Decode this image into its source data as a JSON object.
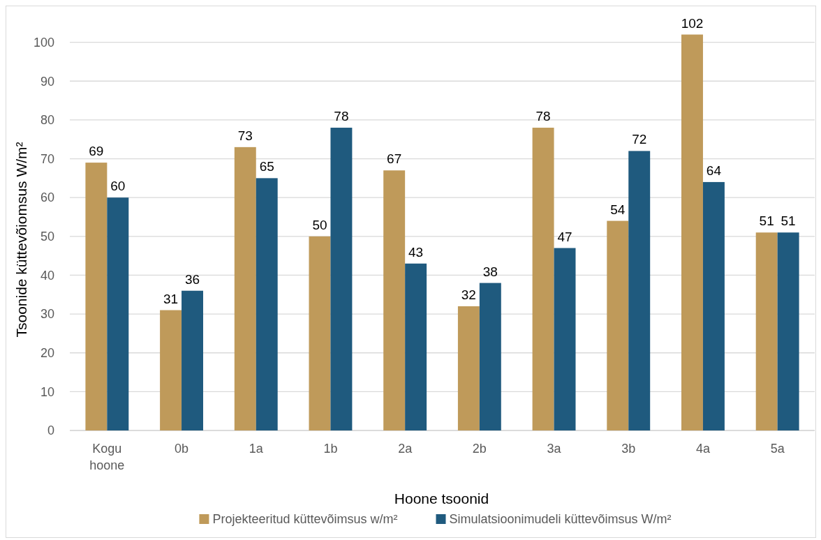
{
  "chart_data": {
    "type": "bar",
    "xlabel": "Hoone tsoonid",
    "ylabel": "Tsoonide küttevõiomsus W/m²",
    "categories": [
      "Kogu hoone",
      "0b",
      "1a",
      "1b",
      "2a",
      "2b",
      "3a",
      "3b",
      "4a",
      "5a"
    ],
    "series": [
      {
        "name": "Projekteeritud küttevõimsus w/m²",
        "color": "#bf9a5a",
        "values": [
          69,
          31,
          73,
          50,
          67,
          32,
          78,
          54,
          102,
          51
        ]
      },
      {
        "name": "Simulatsioonimudeli küttevõimsus W/m²",
        "color": "#1f5a7e",
        "values": [
          60,
          36,
          65,
          78,
          43,
          38,
          47,
          72,
          64,
          51
        ]
      }
    ],
    "ylim": [
      0,
      110
    ],
    "yticks": [
      0,
      10,
      20,
      30,
      40,
      50,
      60,
      70,
      80,
      90,
      100
    ],
    "grid": "y",
    "legend": "bottom",
    "data_labels": true
  }
}
